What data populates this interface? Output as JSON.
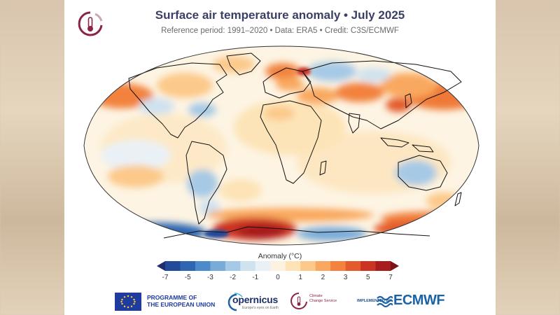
{
  "header": {
    "title": "Surface air temperature anomaly • July 2025",
    "subtitle": "Reference period: 1991–2020 • Data: ERA5 • Credit: C3S/ECMWF"
  },
  "legend": {
    "title": "Anomaly (°C)",
    "ticks": [
      "-7",
      "-5",
      "-3",
      "-2",
      "-1",
      "0",
      "1",
      "2",
      "3",
      "5",
      "7"
    ],
    "colors": [
      "#1f2e6e",
      "#244a9a",
      "#2e66b2",
      "#4c8ac9",
      "#79abd9",
      "#a6c9e6",
      "#cfe2f0",
      "#eaf1f6",
      "#fbf3e0",
      "#fde3b5",
      "#fcc98a",
      "#f9a95f",
      "#f2823e",
      "#e35b2c",
      "#cc3322",
      "#a71d1d",
      "#7c1216"
    ]
  },
  "footer": {
    "eu_line1": "PROGRAMME OF",
    "eu_line2": "THE EUROPEAN UNION",
    "copernicus": "opernicus",
    "copernicus_tag": "Europe's eyes on Earth",
    "c3s_line1": "Climate",
    "c3s_line2": "Change Service",
    "implemented": "IMPLEMENTED BY",
    "ecmwf": "ECMWF"
  },
  "colors": {
    "title": "#3b3f66",
    "c3s": "#8b2346",
    "ecmwf": "#1c62a6"
  }
}
